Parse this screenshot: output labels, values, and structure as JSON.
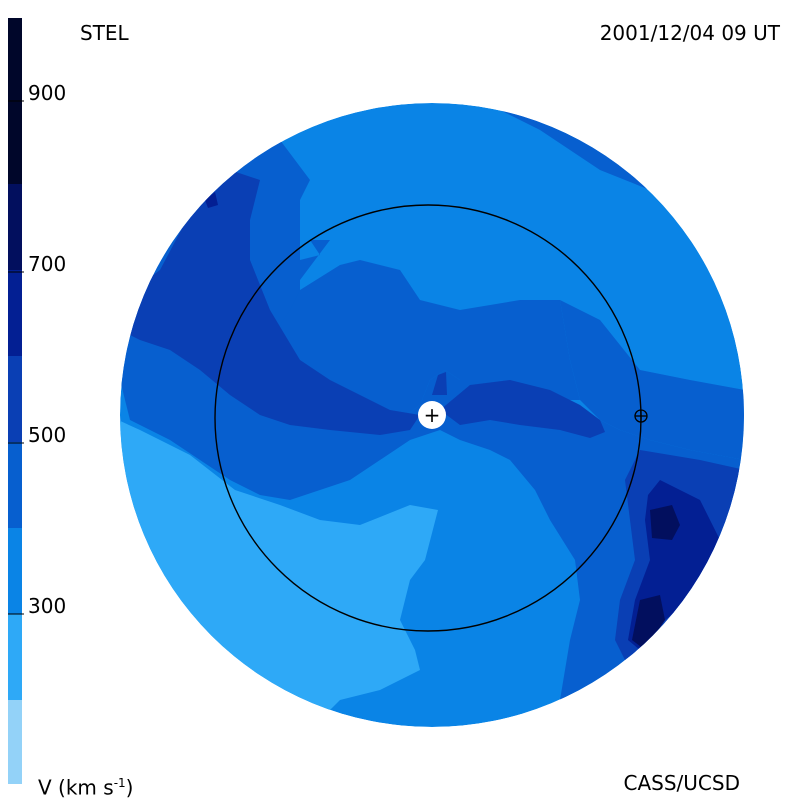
{
  "header": {
    "source": "STEL",
    "timestamp": "2001/12/04 09 UT"
  },
  "footer": {
    "quantity_label": "V (km s",
    "quantity_exponent": "-1",
    "quantity_close": ")",
    "credit": "CASS/UCSD"
  },
  "colorbar": {
    "tick_labels": [
      "900",
      "700",
      "500",
      "300"
    ],
    "tick_values": [
      900,
      700,
      500,
      300
    ],
    "range": [
      200,
      1000
    ],
    "bands": [
      {
        "from": 200,
        "to": 300,
        "color": "#93d2f8"
      },
      {
        "from": 300,
        "to": 400,
        "color": "#2ea9f7"
      },
      {
        "from": 400,
        "to": 500,
        "color": "#0a84e6"
      },
      {
        "from": 500,
        "to": 600,
        "color": "#075fcf"
      },
      {
        "from": 600,
        "to": 700,
        "color": "#0a3fb4"
      },
      {
        "from": 700,
        "to": 800,
        "color": "#031f93"
      },
      {
        "from": 800,
        "to": 900,
        "color": "#020f5e"
      },
      {
        "from": 900,
        "to": 1000,
        "color": "#00062a"
      }
    ]
  },
  "markers": {
    "sun_symbol": "+",
    "earth_symbol": "⊕"
  }
}
